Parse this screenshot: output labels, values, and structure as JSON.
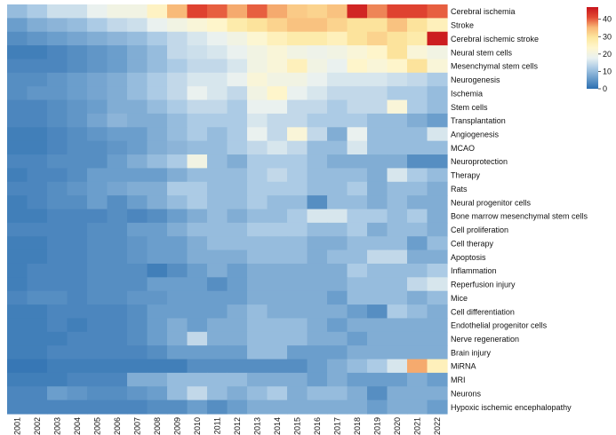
{
  "chart_data": {
    "type": "heatmap",
    "title": "",
    "xlabel": "",
    "ylabel": "",
    "x": [
      "2001",
      "2002",
      "2003",
      "2004",
      "2005",
      "2006",
      "2007",
      "2008",
      "2009",
      "2010",
      "2011",
      "2012",
      "2013",
      "2014",
      "2015",
      "2016",
      "2017",
      "2018",
      "2019",
      "2020",
      "2021",
      "2022"
    ],
    "y": [
      "Cerebral ischemia",
      "Stroke",
      "Cerebral ischemic stroke",
      "Neural stem cells",
      "Mesenchymal stem cells",
      "Neurogenesis",
      "Ischemia",
      "Stem cells",
      "Transplantation",
      "Angiogenesis",
      "MCAO",
      "Neuroprotection",
      "Therapy",
      "Rats",
      "Neural progenitor cells",
      "Bone marrow mesenchymal stem cells",
      "Cell proliferation",
      "Cell therapy",
      "Apoptosis",
      "Inflammation",
      "Reperfusion injury",
      "Mice",
      "Cell differentiation",
      "Endothelial progenitor cells",
      "Nerve regeneration",
      "Brain injury",
      "MiRNA",
      "MRI",
      "Neurons",
      "Hypoxic ischemic encephalopathy"
    ],
    "values": [
      [
        10,
        12,
        15,
        15,
        18,
        20,
        20,
        25,
        35,
        42,
        40,
        36,
        40,
        36,
        33,
        32,
        34,
        45,
        38,
        42,
        42,
        40
      ],
      [
        6,
        8,
        9,
        10,
        12,
        14,
        15,
        18,
        20,
        22,
        24,
        28,
        30,
        32,
        34,
        34,
        32,
        30,
        30,
        34,
        30,
        26
      ],
      [
        4,
        5,
        6,
        7,
        8,
        9,
        10,
        12,
        14,
        16,
        18,
        20,
        23,
        26,
        28,
        28,
        26,
        30,
        32,
        30,
        28,
        46
      ],
      [
        2,
        2,
        3,
        4,
        5,
        6,
        8,
        10,
        14,
        15,
        16,
        18,
        20,
        22,
        20,
        19,
        20,
        22,
        24,
        30,
        22,
        20
      ],
      [
        3,
        3,
        3,
        4,
        5,
        6,
        8,
        10,
        12,
        14,
        14,
        16,
        20,
        22,
        26,
        20,
        18,
        24,
        22,
        24,
        30,
        22
      ],
      [
        4,
        4,
        5,
        6,
        7,
        8,
        10,
        12,
        14,
        16,
        16,
        18,
        22,
        20,
        20,
        18,
        16,
        16,
        16,
        15,
        14,
        12
      ],
      [
        4,
        5,
        5,
        6,
        7,
        8,
        10,
        12,
        14,
        18,
        16,
        14,
        20,
        24,
        18,
        16,
        14,
        14,
        14,
        12,
        12,
        10
      ],
      [
        3,
        3,
        4,
        5,
        6,
        8,
        8,
        10,
        12,
        14,
        14,
        12,
        18,
        18,
        14,
        14,
        12,
        14,
        14,
        22,
        12,
        10
      ],
      [
        3,
        3,
        4,
        5,
        7,
        9,
        8,
        8,
        10,
        12,
        12,
        12,
        16,
        14,
        14,
        12,
        12,
        12,
        10,
        10,
        8,
        6
      ],
      [
        2,
        2,
        3,
        4,
        5,
        6,
        6,
        8,
        10,
        12,
        10,
        12,
        18,
        14,
        22,
        14,
        8,
        18,
        10,
        10,
        10,
        16
      ],
      [
        2,
        2,
        3,
        4,
        4,
        5,
        6,
        8,
        9,
        10,
        10,
        12,
        14,
        16,
        14,
        10,
        10,
        16,
        10,
        10,
        10,
        10
      ],
      [
        3,
        3,
        4,
        4,
        4,
        6,
        8,
        10,
        12,
        20,
        10,
        8,
        12,
        12,
        12,
        10,
        8,
        8,
        8,
        8,
        4,
        4
      ],
      [
        2,
        3,
        3,
        4,
        6,
        6,
        6,
        6,
        8,
        10,
        10,
        10,
        12,
        14,
        12,
        10,
        10,
        10,
        8,
        16,
        12,
        10
      ],
      [
        3,
        3,
        4,
        5,
        6,
        7,
        8,
        8,
        12,
        12,
        10,
        10,
        12,
        12,
        12,
        10,
        10,
        12,
        8,
        10,
        10,
        8
      ],
      [
        2,
        3,
        4,
        4,
        6,
        4,
        6,
        8,
        10,
        12,
        10,
        10,
        12,
        10,
        10,
        4,
        10,
        10,
        8,
        10,
        8,
        8
      ],
      [
        2,
        2,
        3,
        3,
        3,
        4,
        3,
        4,
        6,
        8,
        10,
        8,
        10,
        10,
        12,
        16,
        16,
        12,
        12,
        10,
        12,
        8
      ],
      [
        3,
        3,
        3,
        3,
        4,
        4,
        6,
        6,
        8,
        10,
        10,
        10,
        12,
        12,
        12,
        10,
        10,
        12,
        8,
        10,
        10,
        8
      ],
      [
        2,
        2,
        3,
        3,
        4,
        4,
        5,
        6,
        6,
        8,
        10,
        10,
        10,
        10,
        10,
        8,
        8,
        10,
        10,
        10,
        6,
        10
      ],
      [
        2,
        2,
        3,
        3,
        4,
        4,
        5,
        6,
        6,
        8,
        8,
        8,
        10,
        10,
        10,
        8,
        10,
        10,
        14,
        14,
        8,
        8
      ],
      [
        2,
        3,
        3,
        3,
        4,
        4,
        4,
        2,
        4,
        6,
        8,
        6,
        8,
        8,
        8,
        8,
        8,
        12,
        10,
        10,
        10,
        12
      ],
      [
        2,
        3,
        3,
        3,
        4,
        4,
        4,
        6,
        6,
        6,
        4,
        6,
        8,
        8,
        8,
        8,
        8,
        10,
        10,
        10,
        14,
        16
      ],
      [
        3,
        4,
        4,
        3,
        4,
        4,
        5,
        5,
        6,
        6,
        6,
        6,
        8,
        8,
        8,
        8,
        6,
        10,
        10,
        10,
        8,
        10
      ],
      [
        2,
        2,
        3,
        3,
        3,
        3,
        4,
        6,
        6,
        6,
        6,
        8,
        10,
        8,
        8,
        8,
        8,
        6,
        4,
        12,
        10,
        8
      ],
      [
        2,
        2,
        3,
        2,
        3,
        3,
        4,
        6,
        8,
        6,
        8,
        8,
        10,
        10,
        10,
        8,
        6,
        8,
        8,
        8,
        8,
        8
      ],
      [
        2,
        2,
        2,
        3,
        3,
        3,
        4,
        6,
        8,
        14,
        8,
        8,
        10,
        10,
        10,
        8,
        8,
        6,
        8,
        8,
        8,
        8
      ],
      [
        2,
        2,
        3,
        3,
        3,
        3,
        3,
        4,
        6,
        6,
        6,
        6,
        10,
        10,
        6,
        6,
        6,
        8,
        8,
        8,
        8,
        8
      ],
      [
        1,
        1,
        2,
        2,
        2,
        2,
        2,
        2,
        2,
        4,
        4,
        4,
        4,
        4,
        4,
        6,
        8,
        10,
        12,
        16,
        36,
        26
      ],
      [
        2,
        2,
        2,
        3,
        3,
        3,
        8,
        8,
        10,
        10,
        10,
        10,
        8,
        8,
        8,
        6,
        8,
        6,
        6,
        6,
        8,
        6
      ],
      [
        3,
        3,
        6,
        5,
        4,
        4,
        5,
        6,
        10,
        14,
        10,
        8,
        10,
        12,
        8,
        10,
        10,
        8,
        4,
        8,
        8,
        8
      ],
      [
        3,
        3,
        3,
        3,
        3,
        3,
        3,
        4,
        4,
        6,
        4,
        6,
        8,
        8,
        8,
        8,
        8,
        8,
        6,
        8,
        8,
        6
      ]
    ],
    "colorbar": {
      "min": 0,
      "max": 47,
      "ticks": [
        0,
        10,
        20,
        30,
        40
      ]
    },
    "colors": [
      "#2c6fb0",
      "#6a9dcb",
      "#a9c9e4",
      "#e9f1f1",
      "#fef6cf",
      "#fde8a0",
      "#f8b877",
      "#e34a33",
      "#c7141c"
    ]
  }
}
